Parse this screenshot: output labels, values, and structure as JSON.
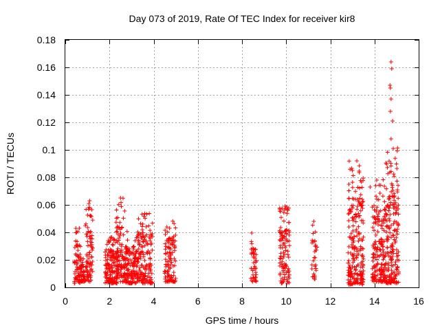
{
  "chart_data": {
    "type": "scatter",
    "title": "Day 073 of 2019, Rate Of TEC Index for receiver kir8",
    "xlabel": "GPS time / hours",
    "ylabel": "ROTI / TECUs",
    "xlim": [
      0,
      16
    ],
    "ylim": [
      0,
      0.18
    ],
    "grid": true,
    "x_ticks": [
      0,
      2,
      4,
      6,
      8,
      10,
      12,
      14,
      16
    ],
    "x_tick_labels": [
      "0",
      "2",
      "4",
      "6",
      "8",
      "10",
      "12",
      "14",
      "16"
    ],
    "y_ticks": [
      0,
      0.02,
      0.04,
      0.06,
      0.08,
      0.1,
      0.12,
      0.14,
      0.16,
      0.18
    ],
    "y_tick_labels": [
      "0",
      "0.02",
      "0.04",
      "0.06",
      "0.08",
      "0.1",
      "0.12",
      "0.14",
      "0.16",
      "0.18"
    ],
    "marker": "+",
    "color": "#ff0000",
    "series": [
      {
        "name": "ROTI",
        "clusters": [
          {
            "x_range": [
              0.4,
              0.7
            ],
            "y_range": [
              0.003,
              0.046
            ],
            "count": 70
          },
          {
            "x_range": [
              0.7,
              0.9
            ],
            "y_range": [
              0.004,
              0.024
            ],
            "count": 40
          },
          {
            "x_range": [
              0.9,
              1.25
            ],
            "y_range": [
              0.004,
              0.064
            ],
            "count": 80
          },
          {
            "x_range": [
              1.8,
              2.4
            ],
            "y_range": [
              0.003,
              0.038
            ],
            "count": 160
          },
          {
            "x_range": [
              2.3,
              2.7
            ],
            "y_range": [
              0.004,
              0.066
            ],
            "count": 90
          },
          {
            "x_range": [
              2.7,
              3.3
            ],
            "y_range": [
              0.003,
              0.042
            ],
            "count": 150
          },
          {
            "x_range": [
              3.3,
              3.95
            ],
            "y_range": [
              0.003,
              0.055
            ],
            "count": 150
          },
          {
            "x_range": [
              4.5,
              4.75
            ],
            "y_range": [
              0.004,
              0.05
            ],
            "count": 60
          },
          {
            "x_range": [
              4.75,
              5.0
            ],
            "y_range": [
              0.004,
              0.05
            ],
            "count": 50
          },
          {
            "x_range": [
              8.4,
              8.65
            ],
            "y_range": [
              0.004,
              0.04
            ],
            "count": 45
          },
          {
            "x_range": [
              9.7,
              10.15
            ],
            "y_range": [
              0.003,
              0.06
            ],
            "count": 110
          },
          {
            "x_range": [
              11.15,
              11.4
            ],
            "y_range": [
              0.006,
              0.048
            ],
            "count": 30
          },
          {
            "x_range": [
              12.8,
              13.5
            ],
            "y_range": [
              0.002,
              0.092
            ],
            "count": 220
          },
          {
            "x_range": [
              13.9,
              14.5
            ],
            "y_range": [
              0.004,
              0.08
            ],
            "count": 180
          },
          {
            "x_range": [
              14.5,
              15.1
            ],
            "y_range": [
              0.003,
              0.102
            ],
            "count": 200
          }
        ],
        "peaks": [
          {
            "x": 14.75,
            "y": 0.164
          },
          {
            "x": 14.78,
            "y": 0.159
          },
          {
            "x": 14.7,
            "y": 0.147
          },
          {
            "x": 14.72,
            "y": 0.145
          },
          {
            "x": 14.75,
            "y": 0.137
          },
          {
            "x": 14.72,
            "y": 0.128
          },
          {
            "x": 14.82,
            "y": 0.121
          },
          {
            "x": 14.75,
            "y": 0.108
          },
          {
            "x": 14.85,
            "y": 0.101
          },
          {
            "x": 13.2,
            "y": 0.092
          },
          {
            "x": 13.0,
            "y": 0.085
          },
          {
            "x": 14.1,
            "y": 0.078
          },
          {
            "x": 13.8,
            "y": 0.073
          },
          {
            "x": 2.5,
            "y": 0.065
          },
          {
            "x": 1.1,
            "y": 0.063
          },
          {
            "x": 9.95,
            "y": 0.059
          },
          {
            "x": 11.25,
            "y": 0.048
          }
        ]
      }
    ]
  }
}
